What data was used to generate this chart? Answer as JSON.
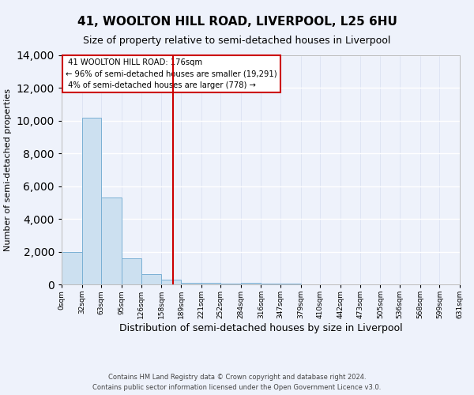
{
  "title": "41, WOOLTON HILL ROAD, LIVERPOOL, L25 6HU",
  "subtitle": "Size of property relative to semi-detached houses in Liverpool",
  "xlabel": "Distribution of semi-detached houses by size in Liverpool",
  "ylabel": "Number of semi-detached properties",
  "property_label": "41 WOOLTON HILL ROAD: 176sqm",
  "pct_smaller": 96,
  "count_smaller": 19291,
  "pct_larger": 4,
  "count_larger": 778,
  "bin_edges": [
    0,
    32,
    63,
    95,
    126,
    158,
    189,
    221,
    252,
    284,
    316,
    347,
    379,
    410,
    442,
    473,
    505,
    536,
    568,
    599,
    631
  ],
  "bar_heights": [
    2000,
    10200,
    5300,
    1600,
    650,
    280,
    120,
    80,
    60,
    90,
    60,
    50,
    20,
    10,
    10,
    5,
    3,
    2,
    2,
    2
  ],
  "bar_color": "#cce0f0",
  "bar_edge_color": "#7ab0d4",
  "vline_color": "#cc0000",
  "vline_x": 176,
  "annotation_box_color": "#ffffff",
  "annotation_box_edge": "#cc0000",
  "ylim": [
    0,
    14000
  ],
  "yticks": [
    0,
    2000,
    4000,
    6000,
    8000,
    10000,
    12000,
    14000
  ],
  "tick_labels": [
    "0sqm",
    "32sqm",
    "63sqm",
    "95sqm",
    "126sqm",
    "158sqm",
    "189sqm",
    "221sqm",
    "252sqm",
    "284sqm",
    "316sqm",
    "347sqm",
    "379sqm",
    "410sqm",
    "442sqm",
    "473sqm",
    "505sqm",
    "536sqm",
    "568sqm",
    "599sqm",
    "631sqm"
  ],
  "footer_line1": "Contains HM Land Registry data © Crown copyright and database right 2024.",
  "footer_line2": "Contains public sector information licensed under the Open Government Licence v3.0.",
  "bg_color": "#eef2fb",
  "plot_bg_color": "#eef2fb",
  "title_fontsize": 11,
  "subtitle_fontsize": 9
}
